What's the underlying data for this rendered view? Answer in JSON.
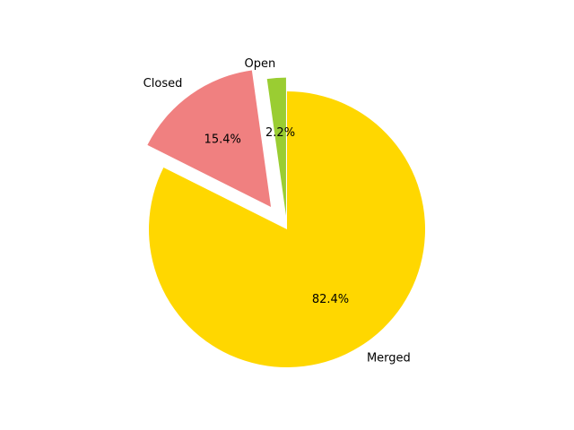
{
  "chart_data": {
    "type": "pie",
    "title": "",
    "slices": [
      {
        "label": "Merged",
        "value": 82.4,
        "pct_label": "82.4%",
        "color": "#FFD700",
        "explode": 0.0
      },
      {
        "label": "Closed",
        "value": 15.4,
        "pct_label": "15.4%",
        "color": "#F08080",
        "explode": 0.2
      },
      {
        "label": "Open",
        "value": 2.2,
        "pct_label": "2.2%",
        "color": "#9ACD32",
        "explode": 0.1
      }
    ],
    "start_angle_deg": 90,
    "direction": "clockwise",
    "legend": "none"
  }
}
